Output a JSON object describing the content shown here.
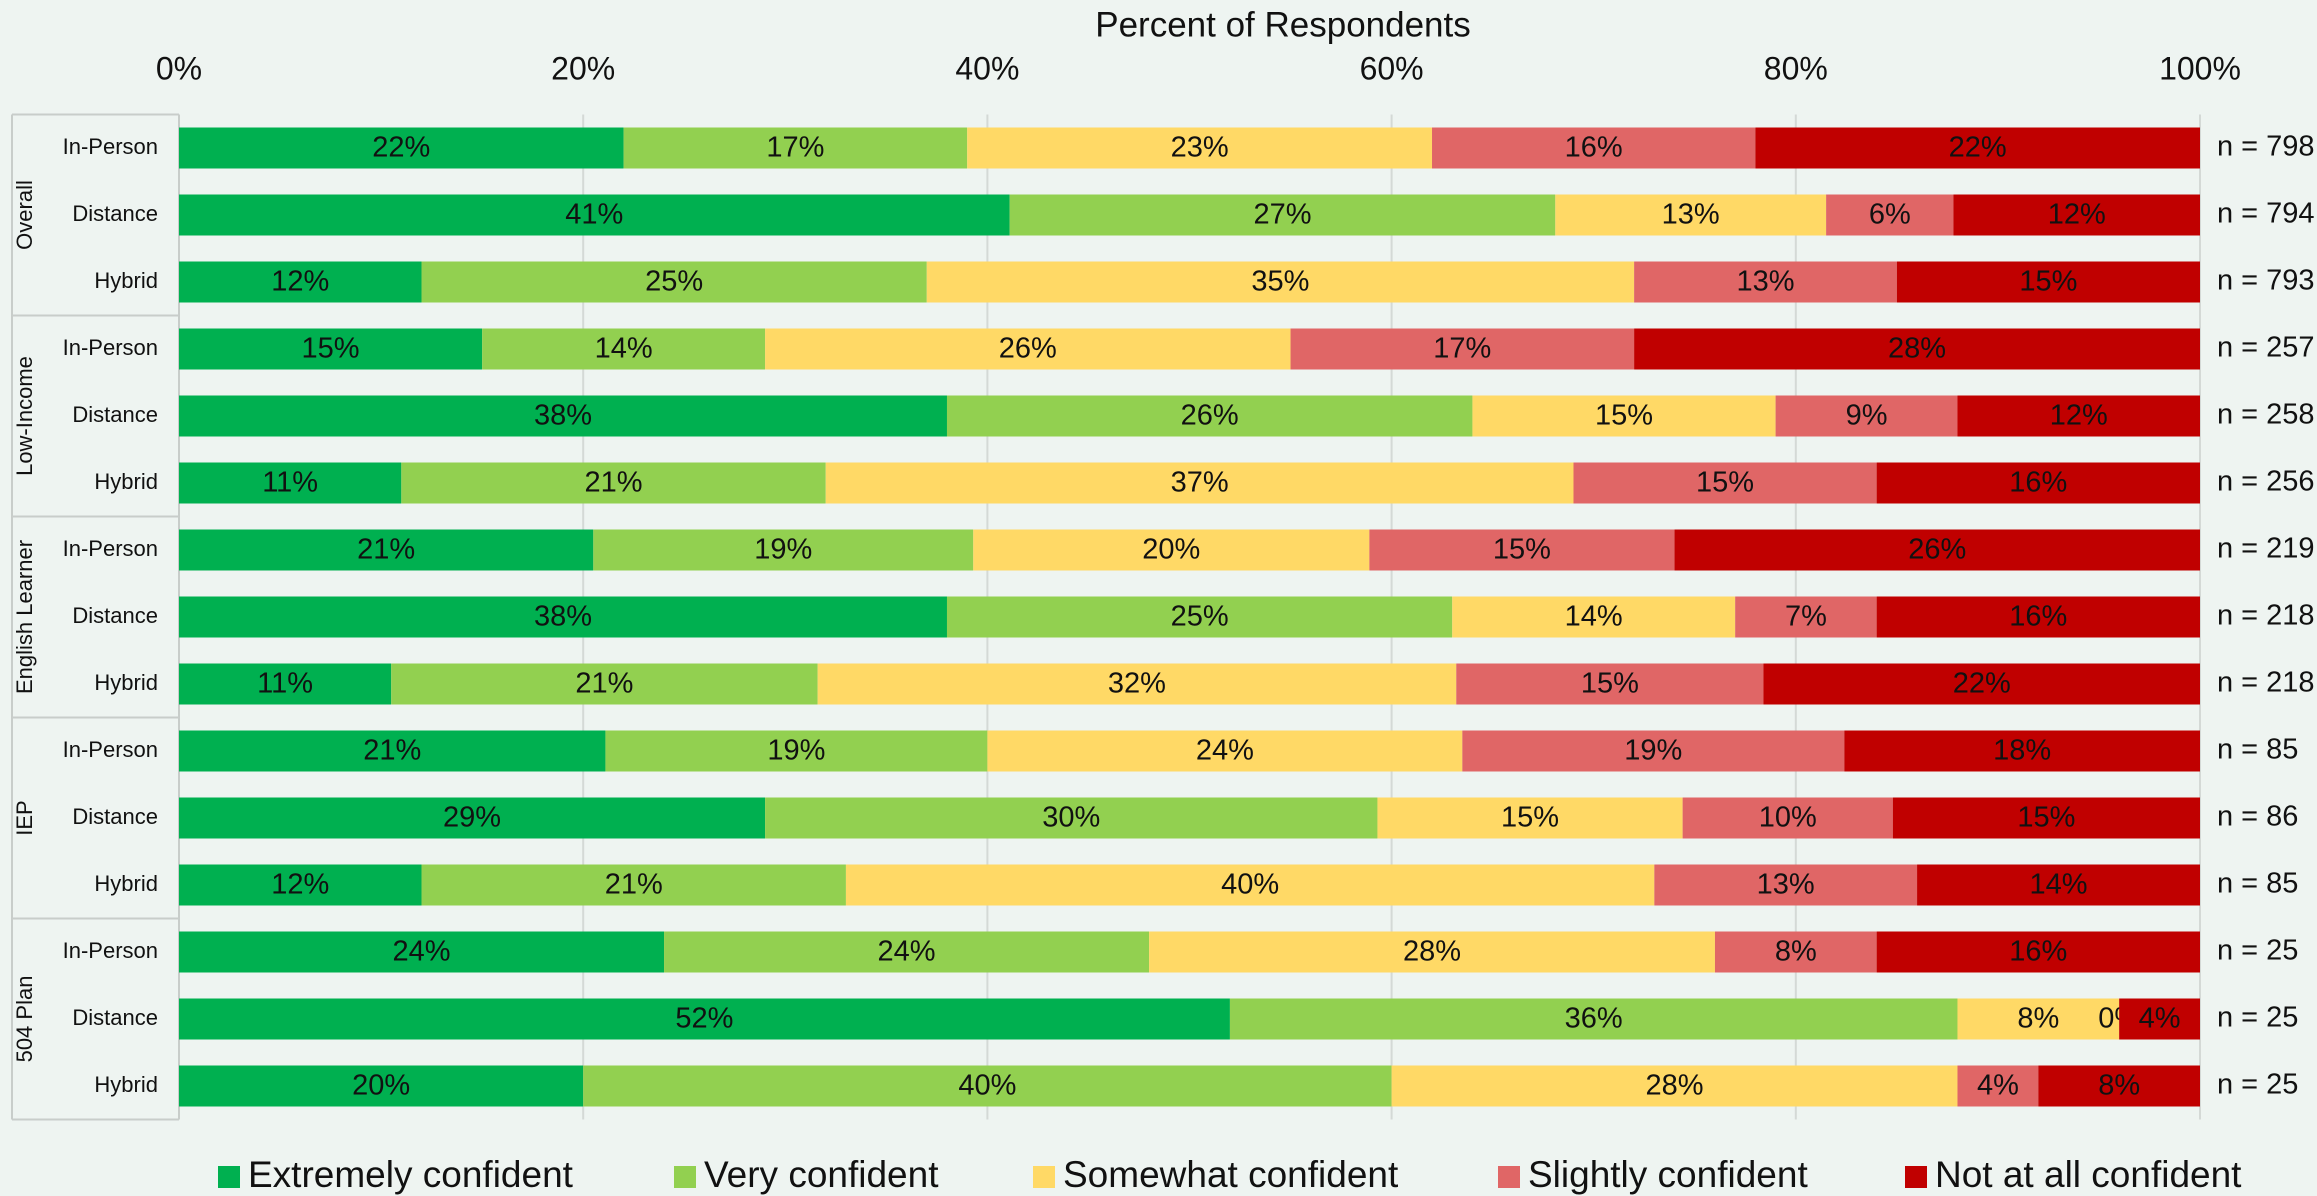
{
  "chart_data": {
    "type": "stacked_barh",
    "title": "Percent of Respondents",
    "xlim": [
      0,
      100
    ],
    "xticks": [
      {
        "value": 0,
        "label": "0%"
      },
      {
        "value": 20,
        "label": "20%"
      },
      {
        "value": 40,
        "label": "40%"
      },
      {
        "value": 60,
        "label": "60%"
      },
      {
        "value": 80,
        "label": "80%"
      },
      {
        "value": 100,
        "label": "100%"
      }
    ],
    "grid": true,
    "legend": "bottom",
    "groups": [
      {
        "name": "Overall",
        "categories": [
          "In-Person",
          "Distance",
          "Hybrid"
        ]
      },
      {
        "name": "Low-Income",
        "categories": [
          "In-Person",
          "Distance",
          "Hybrid"
        ]
      },
      {
        "name": "English Learner",
        "categories": [
          "In-Person",
          "Distance",
          "Hybrid"
        ]
      },
      {
        "name": "IEP",
        "categories": [
          "In-Person",
          "Distance",
          "Hybrid"
        ]
      },
      {
        "name": "504 Plan",
        "categories": [
          "In-Person",
          "Distance",
          "Hybrid"
        ]
      }
    ],
    "n_labels": [
      "n = 798",
      "n = 794",
      "n = 793",
      "n = 257",
      "n = 258",
      "n = 256",
      "n = 219",
      "n = 218",
      "n = 218",
      "n = 85",
      "n = 86",
      "n = 85",
      "n = 25",
      "n = 25",
      "n = 25"
    ],
    "series": [
      {
        "name": "Extremely confident",
        "color": "#00b050",
        "values": [
          22,
          41.1,
          12,
          15,
          38,
          11,
          20.5,
          38,
          10.5,
          21.1,
          29,
          12,
          24,
          52,
          20
        ],
        "value_labels": [
          "22%",
          "41%",
          "12%",
          "15%",
          "38%",
          "11%",
          "21%",
          "38%",
          "11%",
          "21%",
          "29%",
          "12%",
          "24%",
          "52%",
          "20%"
        ]
      },
      {
        "name": "Very confident",
        "color": "#92d050",
        "values": [
          17,
          27,
          25,
          14,
          26,
          21,
          18.8,
          25,
          21.1,
          18.9,
          30.3,
          21,
          24,
          36,
          40
        ],
        "value_labels": [
          "17%",
          "27%",
          "25%",
          "14%",
          "26%",
          "21%",
          "19%",
          "25%",
          "21%",
          "19%",
          "30%",
          "21%",
          "24%",
          "36%",
          "40%"
        ]
      },
      {
        "name": "Somewhat confident",
        "color": "#ffd966",
        "values": [
          23,
          13.4,
          35,
          26,
          15,
          37,
          19.6,
          14,
          31.6,
          23.5,
          15.1,
          40,
          28,
          8,
          28
        ],
        "value_labels": [
          "23%",
          "13%",
          "35%",
          "26%",
          "15%",
          "37%",
          "20%",
          "14%",
          "32%",
          "24%",
          "15%",
          "40%",
          "28%",
          "8%",
          "28%"
        ]
      },
      {
        "name": "Slightly confident",
        "color": "#e06666",
        "values": [
          16,
          6.3,
          13,
          17,
          9,
          15,
          15.1,
          7,
          15.2,
          18.9,
          10.4,
          13,
          8,
          0,
          4
        ],
        "value_labels": [
          "16%",
          "6%",
          "13%",
          "17%",
          "9%",
          "15%",
          "15%",
          "7%",
          "15%",
          "19%",
          "10%",
          "13%",
          "8%",
          "0%",
          "4%"
        ]
      },
      {
        "name": "Not at all confident",
        "color": "#c00000",
        "values": [
          22,
          12.2,
          15,
          28,
          12,
          16,
          26,
          16,
          21.6,
          17.6,
          15.2,
          14,
          16,
          4,
          8
        ],
        "value_labels": [
          "22%",
          "12%",
          "15%",
          "28%",
          "12%",
          "16%",
          "26%",
          "16%",
          "22%",
          "18%",
          "15%",
          "14%",
          "16%",
          "4%",
          "8%"
        ]
      }
    ]
  }
}
